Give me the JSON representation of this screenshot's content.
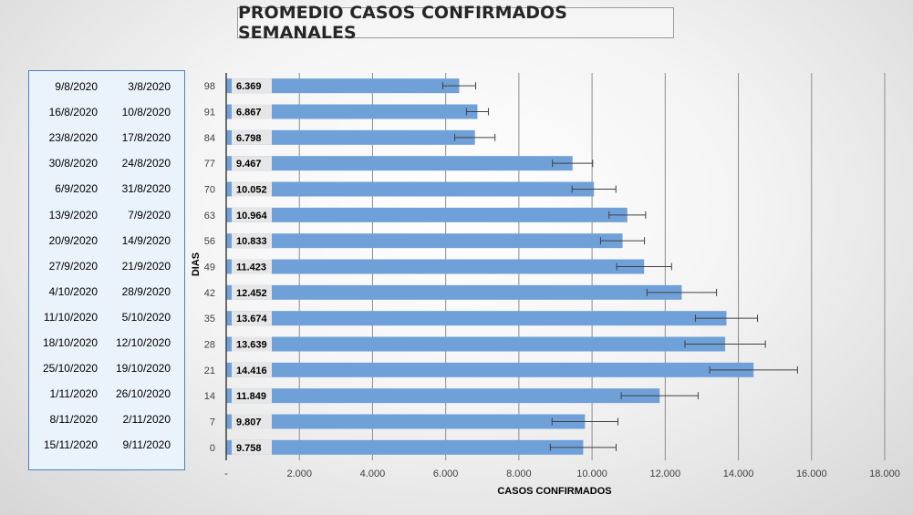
{
  "title": "PROMEDIO CASOS CONFIRMADOS SEMANALES",
  "colors": {
    "bar": "#6fa1d8",
    "label_bg": "#e6e6e6",
    "panel_border": "#4f81bd",
    "panel_bg": "#eaf2fb"
  },
  "date_ranges": [
    {
      "end": "9/8/2020",
      "start": "3/8/2020"
    },
    {
      "end": "16/8/2020",
      "start": "10/8/2020"
    },
    {
      "end": "23/8/2020",
      "start": "17/8/2020"
    },
    {
      "end": "30/8/2020",
      "start": "24/8/2020"
    },
    {
      "end": "6/9/2020",
      "start": "31/8/2020"
    },
    {
      "end": "13/9/2020",
      "start": "7/9/2020"
    },
    {
      "end": "20/9/2020",
      "start": "14/9/2020"
    },
    {
      "end": "27/9/2020",
      "start": "21/9/2020"
    },
    {
      "end": "4/10/2020",
      "start": "28/9/2020"
    },
    {
      "end": "11/10/2020",
      "start": "5/10/2020"
    },
    {
      "end": "18/10/2020",
      "start": "12/10/2020"
    },
    {
      "end": "25/10/2020",
      "start": "19/10/2020"
    },
    {
      "end": "1/11/2020",
      "start": "26/10/2020"
    },
    {
      "end": "8/11/2020",
      "start": "2/11/2020"
    },
    {
      "end": "15/11/2020",
      "start": "9/11/2020"
    }
  ],
  "chart_data": {
    "type": "bar",
    "orientation": "horizontal",
    "ylabel": "DIAS",
    "xlabel": "CASOS CONFIRMADOS",
    "categories": [
      "98",
      "91",
      "84",
      "77",
      "70",
      "63",
      "56",
      "49",
      "42",
      "35",
      "28",
      "21",
      "14",
      "7",
      "0"
    ],
    "values": [
      6369,
      6867,
      6798,
      9467,
      10052,
      10964,
      10833,
      11423,
      12452,
      13674,
      13639,
      14416,
      11849,
      9807,
      9758
    ],
    "value_labels": [
      "6.369",
      "6.867",
      "6.798",
      "9.467",
      "10.052",
      "10.964",
      "10.833",
      "11.423",
      "12.452",
      "13.674",
      "13.639",
      "14.416",
      "11.849",
      "9.807",
      "9.758"
    ],
    "error": [
      450,
      300,
      550,
      550,
      600,
      500,
      600,
      750,
      950,
      850,
      1100,
      1200,
      1050,
      900,
      900
    ],
    "xlim": [
      0,
      18000
    ],
    "xticks": [
      0,
      2000,
      4000,
      6000,
      8000,
      10000,
      12000,
      14000,
      16000,
      18000
    ],
    "xtick_labels": [
      "-",
      "2.000",
      "4.000",
      "6.000",
      "8.000",
      "10.000",
      "12.000",
      "14.000",
      "16.000",
      "18.000"
    ],
    "grid": "vertical"
  }
}
